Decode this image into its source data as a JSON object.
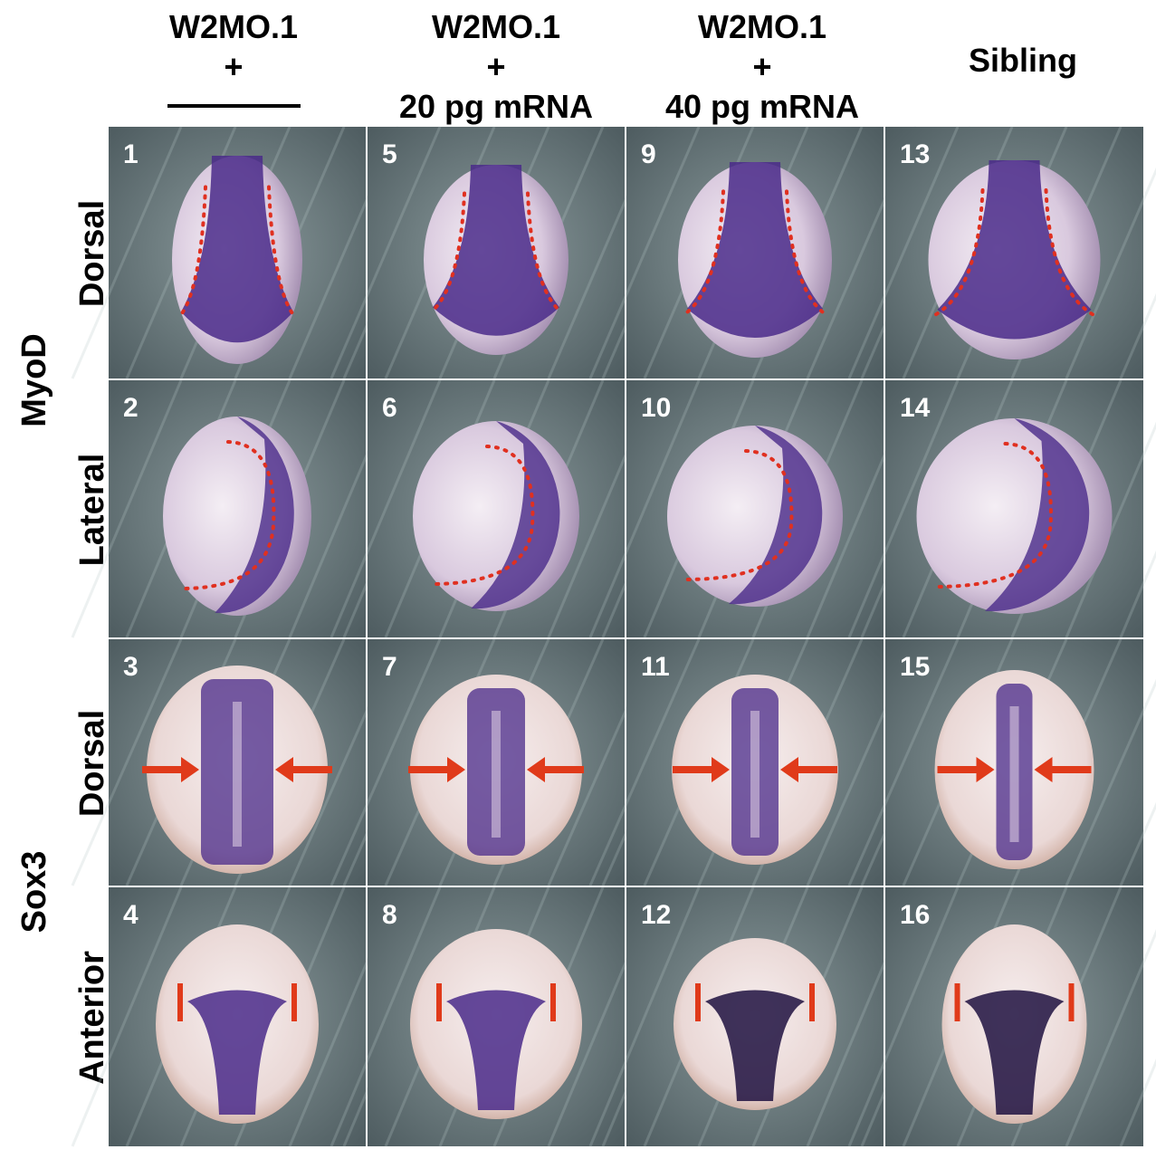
{
  "columns": [
    {
      "lines": [
        "W2MO.1",
        "+"
      ]
    },
    {
      "lines": [
        "W2MO.1",
        "+",
        "20 pg mRNA"
      ]
    },
    {
      "lines": [
        "W2MO.1",
        "+",
        "40 pg mRNA"
      ]
    },
    {
      "lines": [
        "Sibling"
      ]
    }
  ],
  "genes": [
    {
      "label": "MyoD"
    },
    {
      "label": "Sox3"
    }
  ],
  "rows": [
    {
      "view": "Dorsal",
      "numbers": [
        1,
        5,
        9,
        13
      ]
    },
    {
      "view": "Lateral",
      "numbers": [
        2,
        6,
        10,
        14
      ]
    },
    {
      "view": "Dorsal",
      "numbers": [
        3,
        7,
        11,
        15
      ]
    },
    {
      "view": "Anterior",
      "numbers": [
        4,
        8,
        12,
        16
      ]
    }
  ]
}
